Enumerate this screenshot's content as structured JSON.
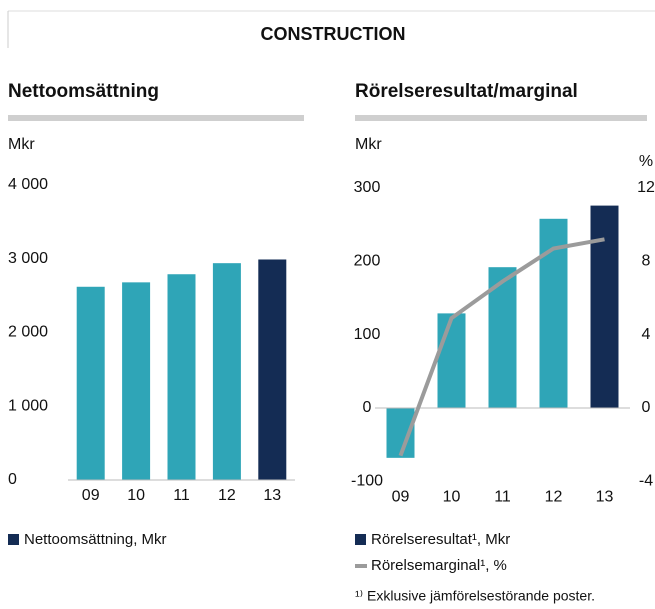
{
  "header": {
    "title": "CONSTRUCTION"
  },
  "chart_data": [
    {
      "type": "bar",
      "title": "Nettoomsättning",
      "y_label": "Mkr",
      "categories": [
        "09",
        "10",
        "11",
        "12",
        "13"
      ],
      "series": [
        {
          "name": "Nettoomsättning, Mkr",
          "colors": [
            "#2fa5b7",
            "#2fa5b7",
            "#2fa5b7",
            "#2fa5b7",
            "#142c54"
          ],
          "values": [
            2620,
            2680,
            2790,
            2940,
            2990
          ]
        }
      ],
      "ylim": [
        0,
        4000
      ],
      "yticks": [
        0,
        {
          "value": 1000,
          "label": "1 000"
        },
        {
          "value": 2000,
          "label": "2 000"
        },
        {
          "value": 3000,
          "label": "3 000"
        },
        {
          "value": 4000,
          "label": "4 000"
        }
      ]
    },
    {
      "type": "bar-line",
      "title": "Rörelseresultat/marginal",
      "y_label": "Mkr",
      "y2_label": "%",
      "categories": [
        "09",
        "10",
        "11",
        "12",
        "13"
      ],
      "series": [
        {
          "name": "Rörelseresultat¹, Mkr",
          "colors": [
            "#2fa5b7",
            "#2fa5b7",
            "#2fa5b7",
            "#2fa5b7",
            "#142c54"
          ],
          "values": [
            -68,
            129,
            192,
            258,
            276
          ]
        },
        {
          "name": "Rörelsemarginal¹, %",
          "color": "#9b9b9b",
          "axis": "y2",
          "values": [
            -2.6,
            4.9,
            6.9,
            8.7,
            9.2
          ]
        }
      ],
      "ylim": [
        -100,
        300
      ],
      "yticks": [
        -100,
        0,
        100,
        200,
        300
      ],
      "y2lim": [
        -4,
        12
      ],
      "y2ticks": [
        -4,
        0,
        4,
        8,
        12
      ]
    }
  ],
  "footnote": "¹⁾ Exklusive jämförelsestörande poster."
}
